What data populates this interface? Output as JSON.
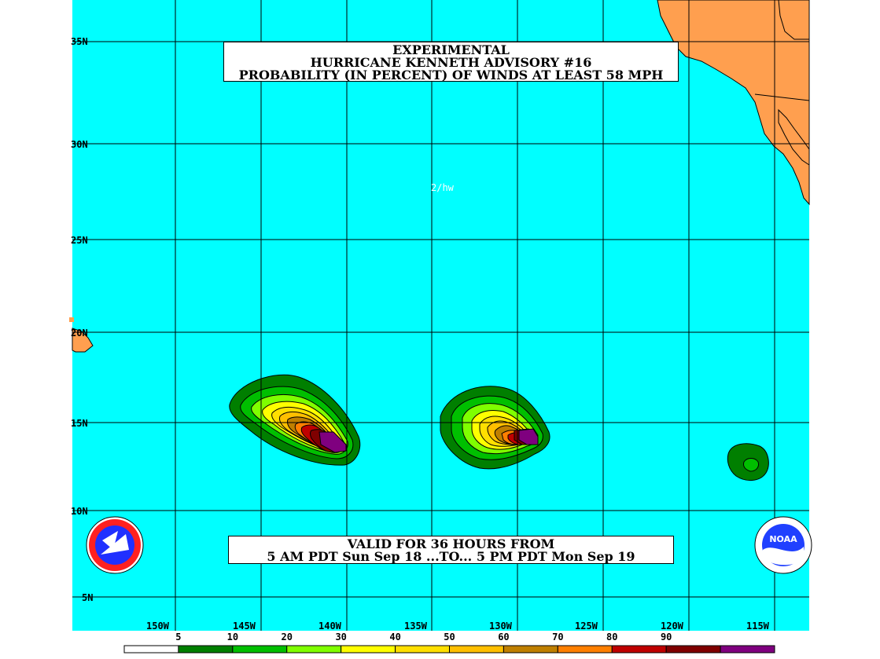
{
  "header": {
    "line1": "EXPERIMENTAL",
    "line2": "HURRICANE KENNETH ADVISORY #16",
    "line3": "PROBABILITY (IN PERCENT) OF WINDS AT LEAST 58 MPH"
  },
  "valid": {
    "line1": "VALID FOR 36 HOURS FROM",
    "line2": "5 AM PDT Sun Sep 18 ...TO... 5 PM PDT Mon Sep 19"
  },
  "credit": "2/hw",
  "colors": {
    "ocean": "#00ffff",
    "land": "#ff9f4f",
    "grid": "#000000"
  },
  "lat_labels": [
    "35N",
    "30N",
    "25N",
    "20N",
    "15N",
    "10N",
    "5N"
  ],
  "lon_labels": [
    "150W",
    "145W",
    "140W",
    "135W",
    "130W",
    "125W",
    "120W",
    "115W"
  ],
  "scale": {
    "thresholds": [
      "5",
      "10",
      "20",
      "30",
      "40",
      "50",
      "60",
      "70",
      "80",
      "90"
    ],
    "colors": [
      "#ffffff",
      "#007f00",
      "#00bf00",
      "#7fff00",
      "#ffff00",
      "#ffdf00",
      "#ffbf00",
      "#bf7f00",
      "#ff7f00",
      "#bf0000",
      "#7f0000",
      "#7f007f"
    ]
  },
  "logos": {
    "left": "nws-logo",
    "right": "noaa-logo",
    "right_text": "NOAA"
  }
}
